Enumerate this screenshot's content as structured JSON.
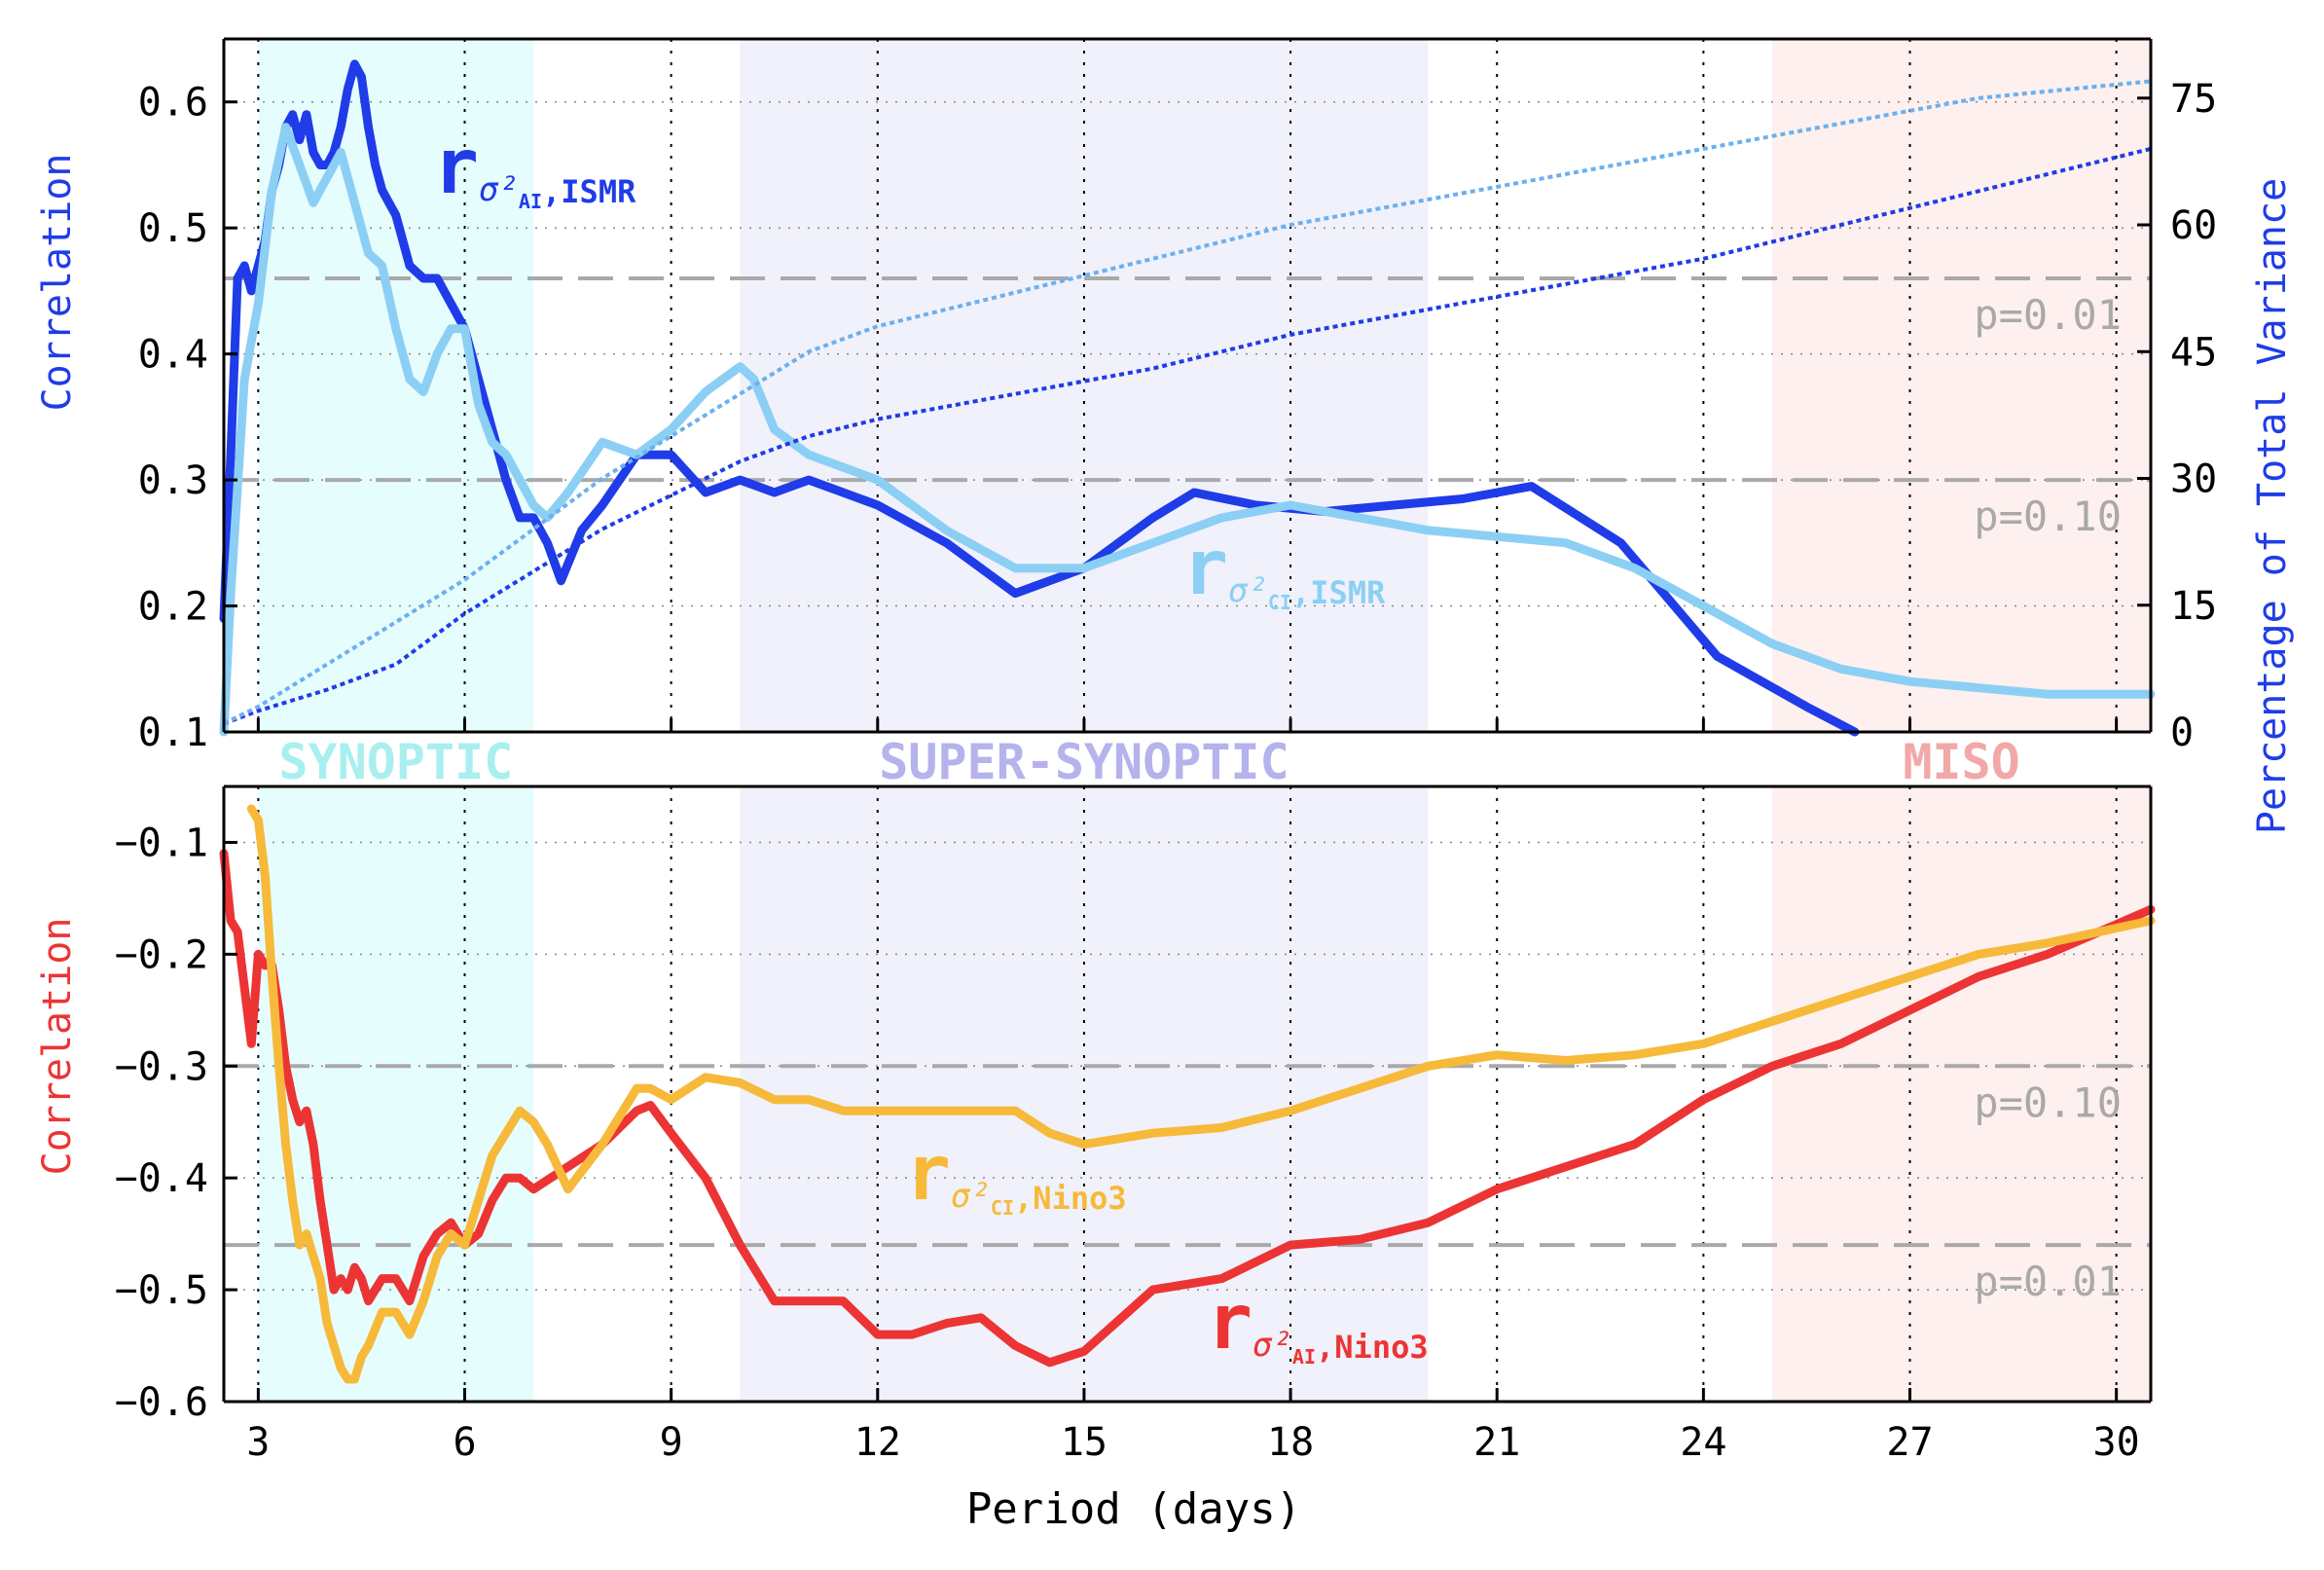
{
  "chart_data": [
    {
      "type": "line",
      "panel": "top",
      "xlabel": "",
      "ylabel": "Correlation",
      "ylabel_right": "Percentage of Total Variance",
      "xlim": [
        2.5,
        30.5
      ],
      "ylim": [
        0.1,
        0.65
      ],
      "ylim_right": [
        0,
        82
      ],
      "yticks": [
        0.1,
        0.2,
        0.3,
        0.4,
        0.5,
        0.6
      ],
      "ytick_labels": [
        "0.1",
        "0.2",
        "0.3",
        "0.4",
        "0.5",
        "0.6"
      ],
      "yticks_right": [
        0,
        15,
        30,
        45,
        60,
        75
      ],
      "ytick_labels_right": [
        "0",
        "15",
        "30",
        "45",
        "60",
        "75"
      ],
      "grid": "dotted",
      "bands": [
        {
          "label": "SYNOPTIC",
          "from": 3,
          "to": 7,
          "fill": "#e6fdfd",
          "text_color": "#a9efef"
        },
        {
          "label": "SUPER-SYNOPTIC",
          "from": 10,
          "to": 20,
          "fill": "#f0f1fb",
          "text_color": "#b5b3ec"
        },
        {
          "label": "MISO",
          "from": 25,
          "to": 30.5,
          "fill": "#fdf0ee",
          "text_color": "#f2a8a8"
        }
      ],
      "thresholds": [
        {
          "label": "p=0.01",
          "y": 0.46
        },
        {
          "label": "p=0.10",
          "y": 0.3
        }
      ],
      "series": [
        {
          "name": "AI_ISMR",
          "label_main": "r",
          "label_sub": "σ²",
          "label_subsub": "AI",
          "label_suffix": ",ISMR",
          "color": "#1f3ce8",
          "axis": "left",
          "style": "solid",
          "x": [
            2.5,
            2.6,
            2.7,
            2.8,
            2.9,
            3.0,
            3.1,
            3.2,
            3.3,
            3.4,
            3.5,
            3.6,
            3.7,
            3.8,
            3.9,
            4.0,
            4.1,
            4.2,
            4.3,
            4.4,
            4.5,
            4.6,
            4.7,
            4.8,
            4.9,
            5.0,
            5.2,
            5.4,
            5.6,
            5.8,
            6.0,
            6.2,
            6.4,
            6.6,
            6.8,
            7.0,
            7.2,
            7.4,
            7.7,
            8.0,
            8.5,
            9.0,
            9.5,
            10.0,
            10.5,
            11.0,
            12.0,
            13.0,
            14.0,
            15.0,
            16.0,
            16.6,
            17.5,
            18.5,
            19.5,
            20.5,
            21.5,
            22.8,
            24.2,
            25.5,
            26.2
          ],
          "y": [
            0.19,
            0.32,
            0.46,
            0.47,
            0.45,
            0.47,
            0.49,
            0.53,
            0.55,
            0.58,
            0.59,
            0.57,
            0.59,
            0.56,
            0.55,
            0.55,
            0.56,
            0.58,
            0.61,
            0.63,
            0.62,
            0.58,
            0.55,
            0.53,
            0.52,
            0.51,
            0.47,
            0.46,
            0.46,
            0.44,
            0.42,
            0.38,
            0.34,
            0.3,
            0.27,
            0.27,
            0.25,
            0.22,
            0.26,
            0.28,
            0.32,
            0.32,
            0.29,
            0.3,
            0.29,
            0.3,
            0.28,
            0.25,
            0.21,
            0.23,
            0.27,
            0.29,
            0.28,
            0.275,
            0.28,
            0.285,
            0.295,
            0.25,
            0.16,
            0.12,
            0.1
          ]
        },
        {
          "name": "CI_ISMR",
          "label_main": "r",
          "label_sub": "σ²",
          "label_subsub": "CI",
          "label_suffix": ",ISMR",
          "color": "#8ccff4",
          "axis": "left",
          "style": "solid",
          "x": [
            2.5,
            2.6,
            2.8,
            3.0,
            3.2,
            3.4,
            3.6,
            3.8,
            4.0,
            4.2,
            4.4,
            4.6,
            4.8,
            5.0,
            5.2,
            5.4,
            5.6,
            5.8,
            6.0,
            6.2,
            6.4,
            6.6,
            6.8,
            7.0,
            7.2,
            7.5,
            8.0,
            8.5,
            9.0,
            9.5,
            10.0,
            10.2,
            10.5,
            11.0,
            11.5,
            12.0,
            13.0,
            14.0,
            15.0,
            16.0,
            17.0,
            18.0,
            19.0,
            20.0,
            21.0,
            22.0,
            23.0,
            24.0,
            25.0,
            26.0,
            27.0,
            28.0,
            29.0,
            30.5
          ],
          "y": [
            0.1,
            0.21,
            0.38,
            0.44,
            0.53,
            0.58,
            0.55,
            0.52,
            0.54,
            0.56,
            0.52,
            0.48,
            0.47,
            0.42,
            0.38,
            0.37,
            0.4,
            0.42,
            0.42,
            0.36,
            0.33,
            0.32,
            0.3,
            0.28,
            0.27,
            0.29,
            0.33,
            0.32,
            0.34,
            0.37,
            0.39,
            0.38,
            0.34,
            0.32,
            0.31,
            0.3,
            0.26,
            0.23,
            0.23,
            0.25,
            0.27,
            0.28,
            0.27,
            0.26,
            0.255,
            0.25,
            0.23,
            0.2,
            0.17,
            0.15,
            0.14,
            0.135,
            0.13,
            0.13
          ]
        },
        {
          "name": "AI_var",
          "color": "#1f3ce8",
          "axis": "right",
          "style": "dotted",
          "x": [
            2.5,
            3.0,
            4.0,
            5.0,
            6.0,
            7.0,
            8.0,
            9.0,
            10.0,
            11.0,
            12.0,
            14.0,
            16.0,
            18.0,
            20.0,
            22.0,
            24.0,
            26.0,
            28.0,
            30.5
          ],
          "y": [
            1,
            2.5,
            5,
            8,
            14,
            19,
            24,
            28,
            32,
            35,
            37,
            40,
            43,
            47,
            50,
            53,
            56,
            60,
            64,
            69
          ]
        },
        {
          "name": "CI_var",
          "color": "#6cb0ef",
          "axis": "right",
          "style": "dotted",
          "x": [
            2.5,
            3.0,
            4.0,
            5.0,
            6.0,
            7.0,
            8.0,
            9.0,
            10.0,
            11.0,
            12.0,
            14.0,
            16.0,
            18.0,
            20.0,
            22.0,
            24.0,
            26.0,
            28.0,
            30.5
          ],
          "y": [
            1,
            3,
            8,
            13,
            18,
            24,
            30,
            35,
            40,
            45,
            48,
            52,
            56,
            60,
            63,
            66,
            69,
            72,
            75,
            77
          ]
        }
      ]
    },
    {
      "type": "line",
      "panel": "bottom",
      "xlabel": "Period (days)",
      "ylabel": "Correlation",
      "xlim": [
        2.5,
        30.5
      ],
      "ylim": [
        -0.6,
        -0.05
      ],
      "xticks": [
        3,
        6,
        9,
        12,
        15,
        18,
        21,
        24,
        27,
        30
      ],
      "xtick_labels": [
        "3",
        "6",
        "9",
        "12",
        "15",
        "18",
        "21",
        "24",
        "27",
        "30"
      ],
      "yticks": [
        -0.6,
        -0.5,
        -0.4,
        -0.3,
        -0.2,
        -0.1
      ],
      "ytick_labels": [
        "−0.6",
        "−0.5",
        "−0.4",
        "−0.3",
        "−0.2",
        "−0.1"
      ],
      "grid": "dotted",
      "thresholds": [
        {
          "label": "p=0.10",
          "y": -0.3
        },
        {
          "label": "p=0.01",
          "y": -0.46
        }
      ],
      "series": [
        {
          "name": "AI_Nino3",
          "label_main": "r",
          "label_sub": "σ²",
          "label_subsub": "AI",
          "label_suffix": ",Nino3",
          "color": "#ec3434",
          "axis": "left",
          "style": "solid",
          "x": [
            2.5,
            2.6,
            2.7,
            2.8,
            2.9,
            3.0,
            3.1,
            3.2,
            3.3,
            3.4,
            3.5,
            3.6,
            3.7,
            3.8,
            3.9,
            4.0,
            4.1,
            4.2,
            4.3,
            4.4,
            4.5,
            4.6,
            4.8,
            5.0,
            5.2,
            5.4,
            5.6,
            5.8,
            6.0,
            6.2,
            6.4,
            6.6,
            6.8,
            7.0,
            7.5,
            8.0,
            8.5,
            8.7,
            9.0,
            9.5,
            10.0,
            10.5,
            11.0,
            11.5,
            12.0,
            12.5,
            13.0,
            13.5,
            14.0,
            14.5,
            15.0,
            16.0,
            17.0,
            18.0,
            19.0,
            20.0,
            21.0,
            22.0,
            23.0,
            24.0,
            25.0,
            26.0,
            27.0,
            28.0,
            29.0,
            30.5
          ],
          "y": [
            -0.11,
            -0.17,
            -0.18,
            -0.23,
            -0.28,
            -0.2,
            -0.21,
            -0.21,
            -0.25,
            -0.3,
            -0.33,
            -0.35,
            -0.34,
            -0.37,
            -0.42,
            -0.46,
            -0.5,
            -0.49,
            -0.5,
            -0.48,
            -0.49,
            -0.51,
            -0.49,
            -0.49,
            -0.51,
            -0.47,
            -0.45,
            -0.44,
            -0.46,
            -0.45,
            -0.42,
            -0.4,
            -0.4,
            -0.41,
            -0.39,
            -0.37,
            -0.34,
            -0.335,
            -0.36,
            -0.4,
            -0.46,
            -0.51,
            -0.51,
            -0.51,
            -0.54,
            -0.54,
            -0.53,
            -0.525,
            -0.55,
            -0.565,
            -0.555,
            -0.5,
            -0.49,
            -0.46,
            -0.455,
            -0.44,
            -0.41,
            -0.39,
            -0.37,
            -0.33,
            -0.3,
            -0.28,
            -0.25,
            -0.22,
            -0.2,
            -0.16
          ]
        },
        {
          "name": "CI_Nino3",
          "label_main": "r",
          "label_sub": "σ²",
          "label_subsub": "CI",
          "label_suffix": ",Nino3",
          "color": "#f6b93a",
          "axis": "left",
          "style": "solid",
          "x": [
            2.9,
            3.0,
            3.1,
            3.2,
            3.3,
            3.4,
            3.5,
            3.6,
            3.7,
            3.8,
            3.9,
            4.0,
            4.1,
            4.2,
            4.3,
            4.4,
            4.5,
            4.6,
            4.8,
            5.0,
            5.2,
            5.4,
            5.6,
            5.8,
            6.0,
            6.2,
            6.4,
            6.6,
            6.8,
            7.0,
            7.2,
            7.5,
            8.0,
            8.5,
            8.7,
            9.0,
            9.5,
            10.0,
            10.5,
            11.0,
            11.5,
            12.0,
            13.0,
            14.0,
            14.5,
            15.0,
            16.0,
            17.0,
            18.0,
            19.0,
            20.0,
            21.0,
            22.0,
            23.0,
            24.0,
            25.0,
            26.0,
            27.0,
            28.0,
            29.0,
            30.5
          ],
          "y": [
            -0.07,
            -0.08,
            -0.13,
            -0.22,
            -0.3,
            -0.37,
            -0.42,
            -0.46,
            -0.45,
            -0.47,
            -0.49,
            -0.53,
            -0.55,
            -0.57,
            -0.58,
            -0.58,
            -0.56,
            -0.55,
            -0.52,
            -0.52,
            -0.54,
            -0.51,
            -0.47,
            -0.45,
            -0.46,
            -0.42,
            -0.38,
            -0.36,
            -0.34,
            -0.35,
            -0.37,
            -0.41,
            -0.37,
            -0.32,
            -0.32,
            -0.33,
            -0.31,
            -0.315,
            -0.33,
            -0.33,
            -0.34,
            -0.34,
            -0.34,
            -0.34,
            -0.36,
            -0.37,
            -0.36,
            -0.355,
            -0.34,
            -0.32,
            -0.3,
            -0.29,
            -0.295,
            -0.29,
            -0.28,
            -0.26,
            -0.24,
            -0.22,
            -0.2,
            -0.19,
            -0.17
          ]
        }
      ]
    }
  ]
}
